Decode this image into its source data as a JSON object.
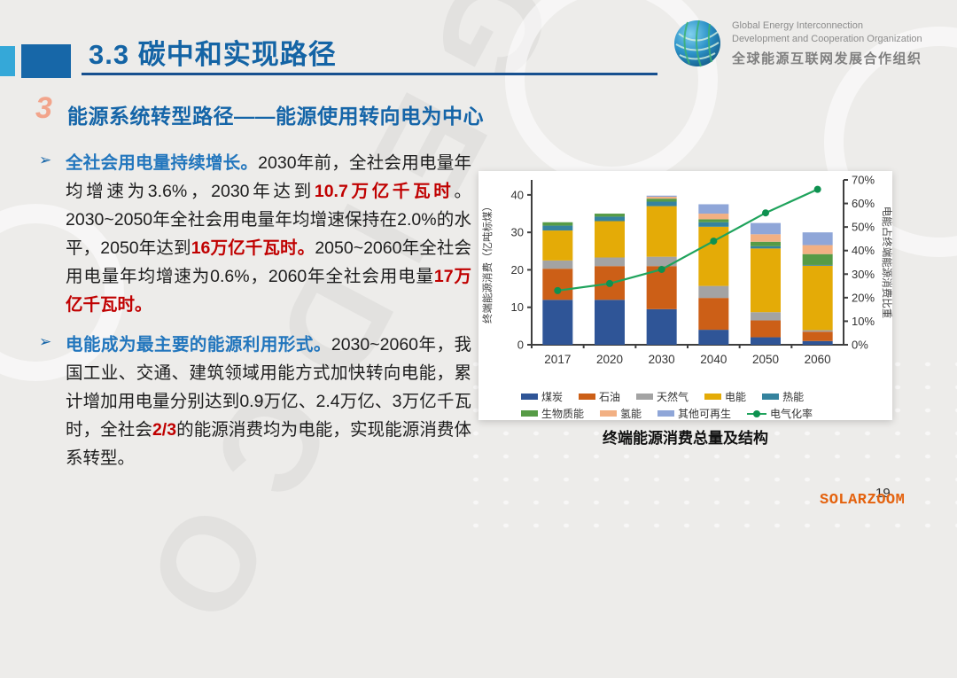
{
  "header": {
    "title": "3.3 碳中和实现路径"
  },
  "logo": {
    "line1": "Global Energy Interconnection",
    "line2": "Development and Cooperation Organization",
    "line3": "全球能源互联网发展合作组织"
  },
  "section": {
    "number": "3",
    "title": "能源系统转型路径——能源使用转向电为中心"
  },
  "bullet_marker": "➢",
  "bullets": [
    {
      "segments": [
        {
          "text": "全社会用电量持续增长。",
          "style": "blue"
        },
        {
          "text": "2030年前，全社会用电量年均增速为3.6%，2030年达到",
          "style": "normal"
        },
        {
          "text": "10.7万亿千瓦时",
          "style": "red"
        },
        {
          "text": "。2030~2050年全社会用电量年均增速保持在2.0%的水平，2050年达到",
          "style": "normal"
        },
        {
          "text": "16万亿千瓦时。",
          "style": "red"
        },
        {
          "text": "2050~2060年全社会用电量年均增速为0.6%，2060年全社会用电量",
          "style": "normal"
        },
        {
          "text": "17万亿千瓦时。",
          "style": "red"
        }
      ]
    },
    {
      "segments": [
        {
          "text": "电能成为最主要的能源利用形式。",
          "style": "blue"
        },
        {
          "text": "2030~2060年，我国工业、交通、建筑领域用能方式加快转向电能，累计增加用电量分别达到0.9万亿、2.4万亿、3万亿千瓦时，全社会",
          "style": "normal"
        },
        {
          "text": "2/3",
          "style": "red"
        },
        {
          "text": "的能源消费均为电能，实现能源消费体系转型。",
          "style": "normal"
        }
      ]
    }
  ],
  "chart_data": {
    "type": "bar",
    "subtype": "stacked-bar-with-line-overlay",
    "title": "终端能源消费总量及结构",
    "categories": [
      "2017",
      "2020",
      "2030",
      "2040",
      "2050",
      "2060"
    ],
    "series": [
      {
        "name": "煤炭",
        "color": "#2f5597",
        "values": [
          12.0,
          12.0,
          9.5,
          4.0,
          2.0,
          1.0
        ]
      },
      {
        "name": "石油",
        "color": "#cc5f17",
        "values": [
          8.3,
          9.0,
          11.5,
          8.5,
          4.5,
          2.5
        ]
      },
      {
        "name": "天然气",
        "color": "#a3a3a3",
        "values": [
          2.2,
          2.3,
          2.5,
          3.2,
          2.2,
          0.4
        ]
      },
      {
        "name": "电能",
        "color": "#e4ab07",
        "values": [
          8.0,
          9.7,
          13.5,
          15.8,
          17.0,
          17.2
        ]
      },
      {
        "name": "热能",
        "color": "#35839e",
        "values": [
          1.3,
          1.2,
          1.2,
          1.2,
          0.6,
          0.2
        ]
      },
      {
        "name": "生物质能",
        "color": "#569b46",
        "values": [
          0.9,
          0.8,
          0.8,
          0.8,
          1.2,
          2.9
        ]
      },
      {
        "name": "氢能",
        "color": "#f2b083",
        "values": [
          0.0,
          0.0,
          0.5,
          1.5,
          2.0,
          2.4
        ]
      },
      {
        "name": "其他可再生",
        "color": "#8fa6d8",
        "values": [
          0.0,
          0.0,
          0.3,
          2.5,
          3.0,
          3.4
        ]
      }
    ],
    "line_series": {
      "name": "电气化率",
      "color": "#1fa35c",
      "marker_color": "#0e9150",
      "values_pct": [
        23,
        26,
        32,
        44,
        56,
        66
      ]
    },
    "ylabel_left": "终端能源消费（亿吨标煤）",
    "ylabel_right": "电能占终端能源消费比重",
    "ylim_left": [
      0,
      44
    ],
    "yticks_left": [
      0,
      10,
      20,
      30,
      40
    ],
    "ylim_right": [
      0,
      70
    ],
    "yticks_right": [
      "0%",
      "10%",
      "20%",
      "30%",
      "40%",
      "50%",
      "60%",
      "70%"
    ],
    "grid": false,
    "legend_position": "bottom"
  },
  "footer": {
    "page_number": "19",
    "watermark": "SOLARZOOM",
    "background_watermark": "GEIDCO"
  },
  "colors": {
    "title_blue": "#1464a5",
    "section_blue": "#1565a8",
    "highlight_red": "#c00000",
    "accent_light_blue": "#35a8d8",
    "accent_dark_blue": "#1767a8"
  }
}
